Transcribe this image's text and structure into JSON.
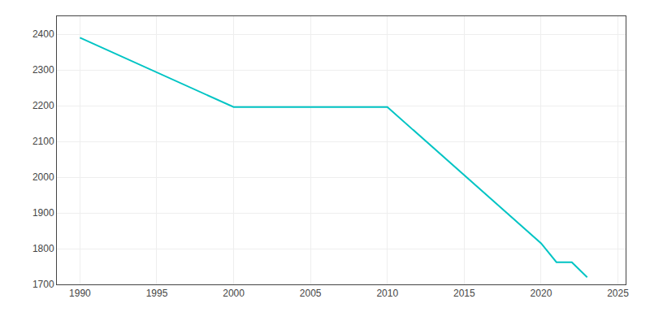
{
  "chart_data": {
    "type": "line",
    "x": [
      1990,
      2000,
      2010,
      2020,
      2021,
      2022,
      2023
    ],
    "values": [
      2390,
      2196,
      2196,
      1815,
      1762,
      1762,
      1720
    ],
    "color": "#00C4C4",
    "xlim": [
      1988.5,
      2025.5
    ],
    "ylim": [
      1700,
      2450
    ],
    "xticks": [
      1990,
      1995,
      2000,
      2005,
      2010,
      2015,
      2020,
      2025
    ],
    "yticks": [
      1700,
      1800,
      1900,
      2000,
      2100,
      2200,
      2300,
      2400
    ],
    "grid": true
  }
}
